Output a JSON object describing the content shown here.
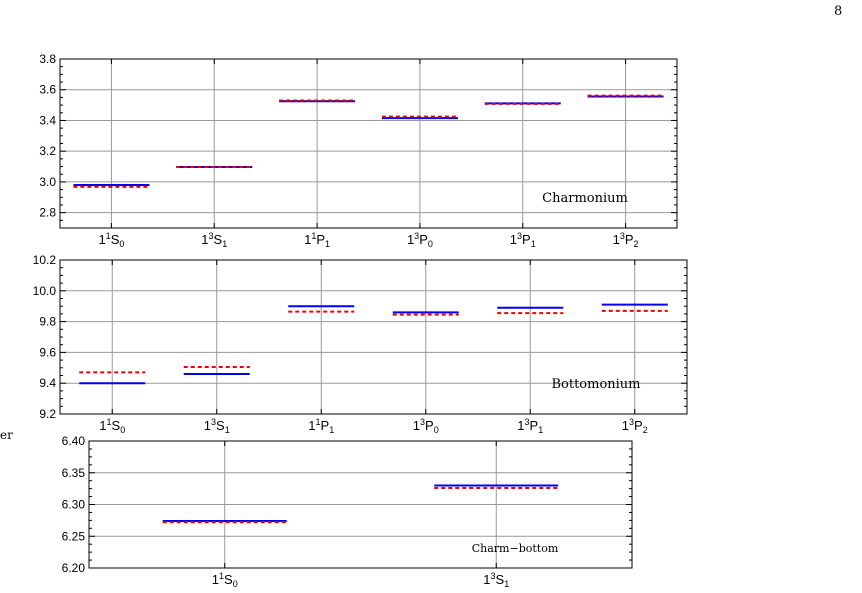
{
  "page": {
    "number": "8",
    "margin_fragment": "er"
  },
  "colors": {
    "series_solid": "#0000ee",
    "series_dashed": "#ee0000",
    "grid": "#999999",
    "frame": "#000000"
  },
  "chart_data": [
    {
      "type": "line",
      "title": "Charmonium",
      "categories": [
        {
          "base": "1",
          "sup": "1",
          "term": "S",
          "sub": "0"
        },
        {
          "base": "1",
          "sup": "3",
          "term": "S",
          "sub": "1"
        },
        {
          "base": "1",
          "sup": "1",
          "term": "P",
          "sub": "1"
        },
        {
          "base": "1",
          "sup": "3",
          "term": "P",
          "sub": "0"
        },
        {
          "base": "1",
          "sup": "3",
          "term": "P",
          "sub": "1"
        },
        {
          "base": "1",
          "sup": "3",
          "term": "P",
          "sub": "2"
        }
      ],
      "series": [
        {
          "style": "solid",
          "values": [
            2.98,
            3.097,
            3.525,
            3.415,
            3.511,
            3.556
          ]
        },
        {
          "style": "dashed",
          "values": [
            2.968,
            3.097,
            3.53,
            3.425,
            3.508,
            3.562
          ]
        }
      ],
      "ylim": [
        2.7,
        3.8
      ],
      "yticks": [
        2.8,
        3.0,
        3.2,
        3.4,
        3.6,
        3.8
      ],
      "ytick_labels": [
        "2.8",
        "3.0",
        "3.2",
        "3.4",
        "3.6",
        "3.8"
      ],
      "grid": true,
      "title_position": "bottom-right"
    },
    {
      "type": "line",
      "title": "Bottomonium",
      "categories": [
        {
          "base": "1",
          "sup": "1",
          "term": "S",
          "sub": "0"
        },
        {
          "base": "1",
          "sup": "3",
          "term": "S",
          "sub": "1"
        },
        {
          "base": "1",
          "sup": "1",
          "term": "P",
          "sub": "1"
        },
        {
          "base": "1",
          "sup": "3",
          "term": "P",
          "sub": "0"
        },
        {
          "base": "1",
          "sup": "3",
          "term": "P",
          "sub": "1"
        },
        {
          "base": "1",
          "sup": "3",
          "term": "P",
          "sub": "2"
        }
      ],
      "series": [
        {
          "style": "solid",
          "values": [
            9.4,
            9.46,
            9.9,
            9.86,
            9.89,
            9.91
          ]
        },
        {
          "style": "dashed",
          "values": [
            9.47,
            9.505,
            9.865,
            9.845,
            9.855,
            9.87
          ]
        }
      ],
      "ylim": [
        9.2,
        10.2
      ],
      "yticks": [
        9.2,
        9.4,
        9.6,
        9.8,
        10.0,
        10.2
      ],
      "ytick_labels": [
        "9.2",
        "9.4",
        "9.6",
        "9.8",
        "10.0",
        "10.2"
      ],
      "grid": true,
      "title_position": "bottom-right"
    },
    {
      "type": "line",
      "title": "Charm−bottom",
      "categories": [
        {
          "base": "1",
          "sup": "1",
          "term": "S",
          "sub": "0"
        },
        {
          "base": "1",
          "sup": "3",
          "term": "S",
          "sub": "1"
        }
      ],
      "series": [
        {
          "style": "solid",
          "values": [
            6.274,
            6.33
          ]
        },
        {
          "style": "dashed",
          "values": [
            6.272,
            6.326
          ]
        }
      ],
      "ylim": [
        6.2,
        6.4
      ],
      "yticks": [
        6.2,
        6.25,
        6.3,
        6.35,
        6.4
      ],
      "ytick_labels": [
        "6.20",
        "6.25",
        "6.30",
        "6.35",
        "6.40"
      ],
      "grid": true,
      "title_position": "bottom-right"
    }
  ]
}
